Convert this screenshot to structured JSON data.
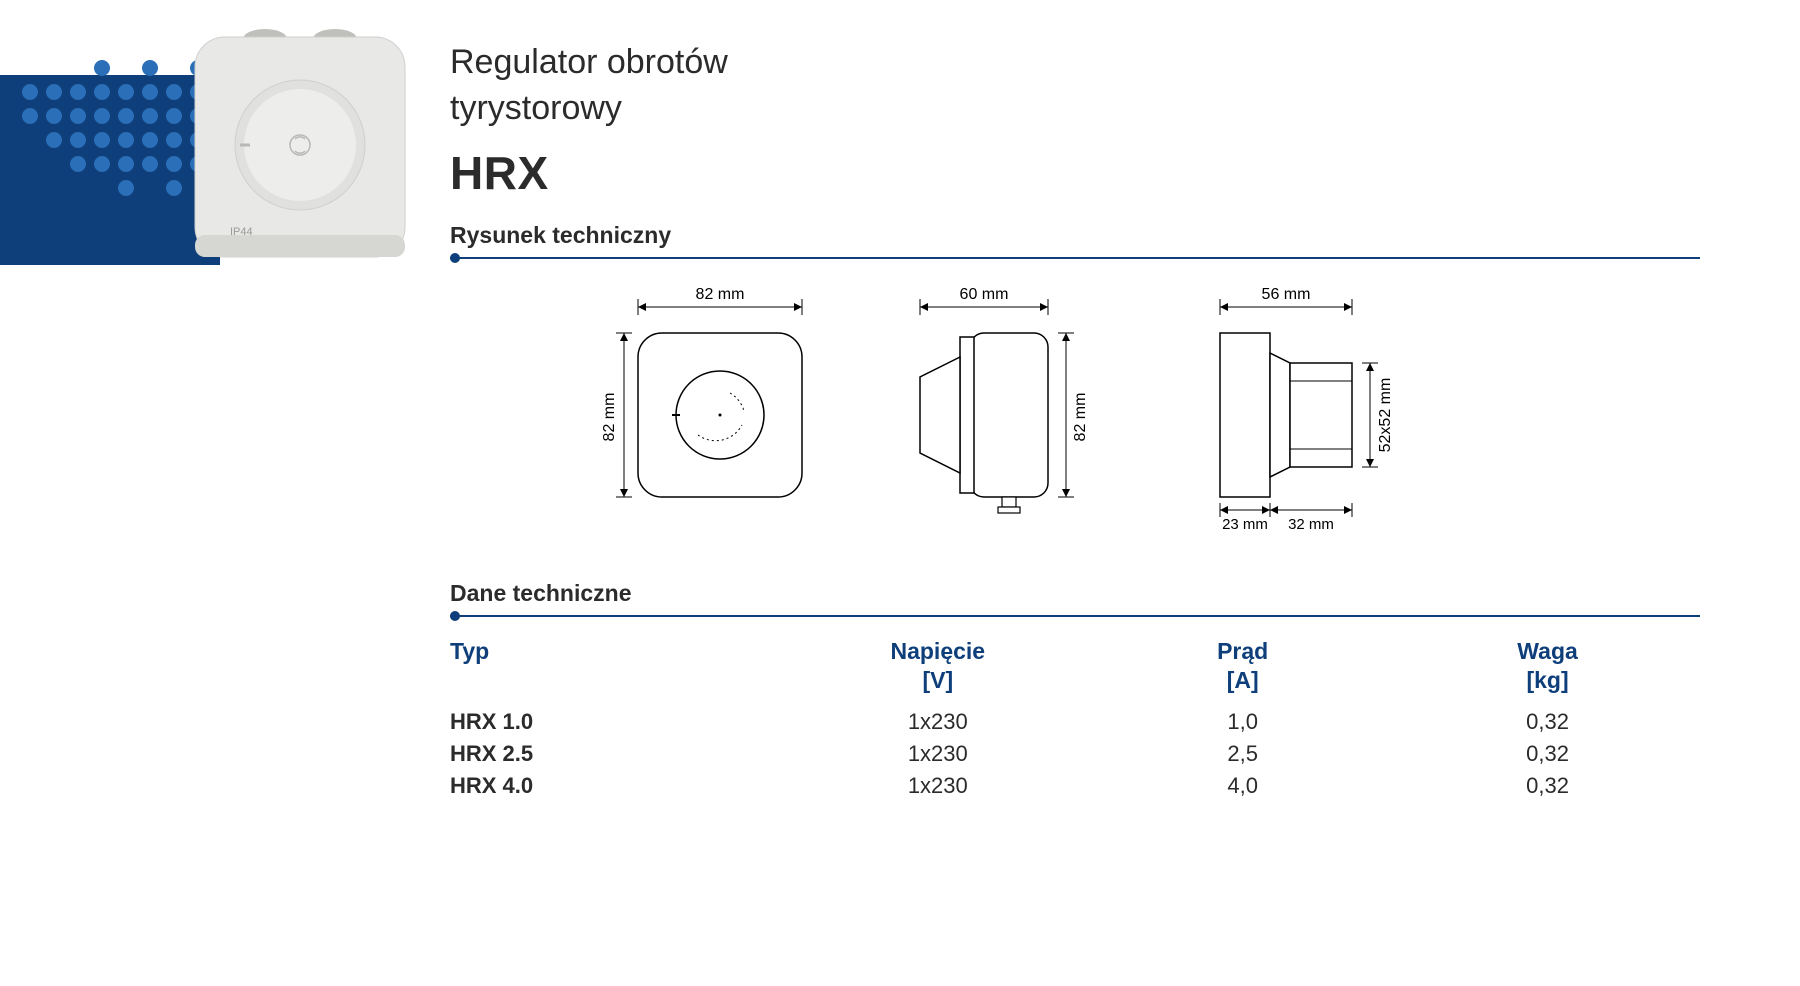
{
  "colors": {
    "brand": "#0e3f7a",
    "dot": "#2a6fb8",
    "text": "#2b2b2b",
    "bg": "#ffffff",
    "product_body": "#e8e8e6",
    "product_shadow": "#c7c7c5"
  },
  "header": {
    "line1": "Regulator obrotów",
    "line2": "tyrystorowy",
    "code": "HRX"
  },
  "dot_grid": {
    "rows": 6,
    "cols": 8,
    "pattern": [
      [
        0,
        0,
        0,
        1,
        0,
        1,
        0,
        1
      ],
      [
        1,
        1,
        1,
        1,
        1,
        1,
        1,
        1
      ],
      [
        1,
        1,
        1,
        1,
        1,
        1,
        1,
        1
      ],
      [
        0,
        1,
        1,
        1,
        1,
        1,
        1,
        1
      ],
      [
        0,
        0,
        1,
        1,
        1,
        1,
        1,
        1
      ],
      [
        0,
        0,
        0,
        0,
        1,
        0,
        1,
        0
      ]
    ]
  },
  "product_label": "IP44",
  "sections": {
    "drawing_title": "Rysunek techniczny",
    "data_title": "Dane techniczne"
  },
  "drawings": {
    "front": {
      "top_label": "82 mm",
      "left_label": "82 mm"
    },
    "side": {
      "top_label": "60 mm",
      "right_label": "82 mm"
    },
    "back": {
      "top_label": "56 mm",
      "right_label": "52x52 mm",
      "bottom_left": "23 mm",
      "bottom_right": "32 mm"
    }
  },
  "table": {
    "columns": [
      {
        "label": "Typ",
        "unit": ""
      },
      {
        "label": "Napięcie",
        "unit": "[V]"
      },
      {
        "label": "Prąd",
        "unit": "[A]"
      },
      {
        "label": "Waga",
        "unit": "[kg]"
      }
    ],
    "rows": [
      [
        "HRX 1.0",
        "1x230",
        "1,0",
        "0,32"
      ],
      [
        "HRX 2.5",
        "1x230",
        "2,5",
        "0,32"
      ],
      [
        "HRX 4.0",
        "1x230",
        "4,0",
        "0,32"
      ]
    ]
  }
}
